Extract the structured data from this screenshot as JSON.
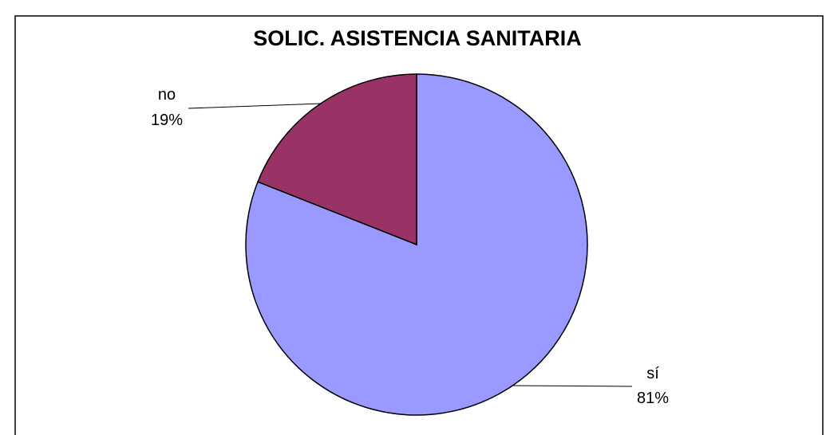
{
  "chart_data": {
    "type": "pie",
    "title": "SOLIC. ASISTENCIA SANITARIA",
    "slices": [
      {
        "name": "sí",
        "value": 81,
        "percent_label": "81%",
        "color": "#9999ff"
      },
      {
        "name": "no",
        "value": 19,
        "percent_label": "19%",
        "color": "#993366"
      }
    ],
    "start": "12 o'clock, clockwise",
    "legend": "none"
  }
}
